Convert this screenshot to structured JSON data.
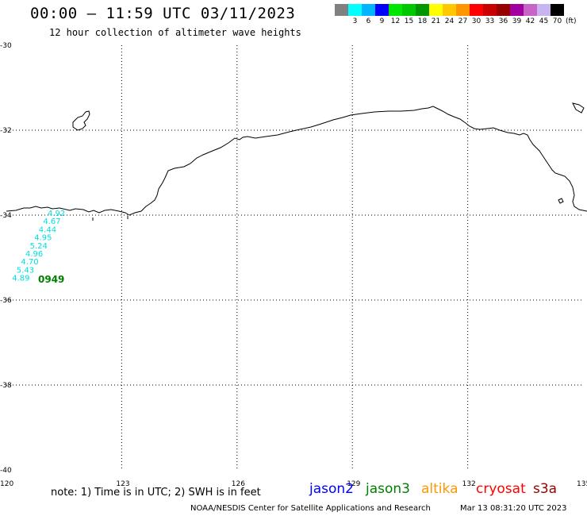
{
  "header": {
    "title": "00:00 – 11:59 UTC 03/11/2023",
    "subtitle": "12 hour collection of altimeter wave heights"
  },
  "legend": {
    "unit": "(ft)",
    "items": [
      {
        "label": "",
        "color": "#808080"
      },
      {
        "label": "3",
        "color": "#00ffff"
      },
      {
        "label": "6",
        "color": "#00b4ff"
      },
      {
        "label": "9",
        "color": "#0000ff"
      },
      {
        "label": "12",
        "color": "#00e600"
      },
      {
        "label": "15",
        "color": "#00c800"
      },
      {
        "label": "18",
        "color": "#009600"
      },
      {
        "label": "21",
        "color": "#ffff00"
      },
      {
        "label": "24",
        "color": "#ffc800"
      },
      {
        "label": "27",
        "color": "#ff9600"
      },
      {
        "label": "30",
        "color": "#ff0000"
      },
      {
        "label": "33",
        "color": "#c80000"
      },
      {
        "label": "36",
        "color": "#960000"
      },
      {
        "label": "39",
        "color": "#a000a0"
      },
      {
        "label": "42",
        "color": "#c864c8"
      },
      {
        "label": "45",
        "color": "#c8b4f0"
      },
      {
        "label": "70",
        "color": "#000000"
      }
    ]
  },
  "map": {
    "lon_range": [
      120,
      135
    ],
    "lat_range": [
      -40,
      -30
    ],
    "x_ticks": [
      "120",
      "123",
      "126",
      "129",
      "132",
      "135"
    ],
    "y_ticks": [
      "-30",
      "-32",
      "-34",
      "-36",
      "-38",
      "-40"
    ],
    "grid": "dotted",
    "wave_readings": [
      "4.92",
      "4.67",
      "4.44",
      "4.95",
      "5.24",
      "4.96",
      "4.70",
      "5.43",
      "4.89"
    ],
    "wave_color": "#00e0e0",
    "pass_time": "0949",
    "pass_color": "#008000"
  },
  "footer": {
    "note": "note: 1) Time is in UTC; 2) SWH is in feet",
    "satellites": [
      {
        "name": "jason2",
        "color": "#0000ff"
      },
      {
        "name": "jason3",
        "color": "#008000"
      },
      {
        "name": "altika",
        "color": "#ff9600"
      },
      {
        "name": "cryosat",
        "color": "#ff0000"
      },
      {
        "name": "s3a",
        "color": "#960000"
      }
    ],
    "credit": "NOAA/NESDIS Center for Satellite Applications and Research",
    "timestamp": "Mar 13 08:31:20 UTC 2023"
  }
}
